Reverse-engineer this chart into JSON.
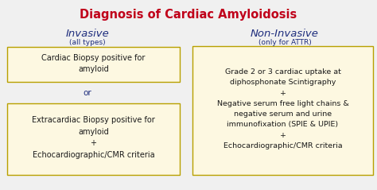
{
  "title": "Diagnosis of Cardiac Amyloidosis",
  "title_color": "#c0001a",
  "title_fontsize": 10.5,
  "left_header": "Invasive",
  "left_subheader": "(all types)",
  "right_header": "Non-Invasive",
  "right_subheader": "(only for ATTR)",
  "header_color": "#1e2d7d",
  "box_bg": "#fdf8e1",
  "box_edge": "#b8a000",
  "box1_text": "Cardiac Biopsy positive for\namyloid",
  "or_text": "or",
  "box2_text": "Extracardiac Biopsy positive for\namyloid\n+\nEchocardiographic/CMR criteria",
  "box3_text": "Grade 2 or 3 cardiac uptake at\ndiphosphonate Scintigraphy\n+\nNegative serum free light chains &\nnegative serum and urine\nimmunofixation (SPIE & UPIE)\n+\nEchocardiographic/CMR criteria",
  "text_color": "#1a1a1a",
  "bg_color": "#f0f0f0",
  "figw": 4.74,
  "figh": 2.39,
  "dpi": 100
}
